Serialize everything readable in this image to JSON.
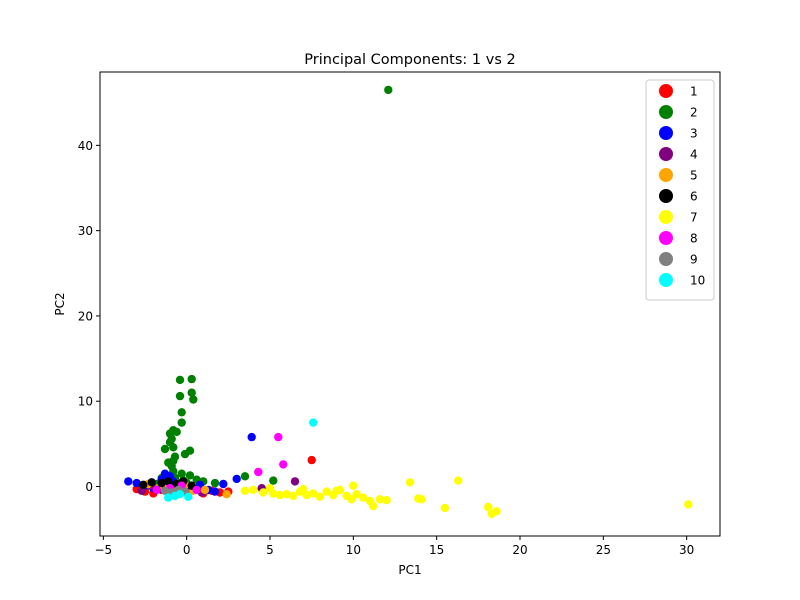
{
  "chart_data": {
    "type": "scatter",
    "title": "Principal Components: 1 vs 2",
    "xlabel": "PC1",
    "ylabel": "PC2",
    "xlim": [
      -5.2,
      32
    ],
    "ylim": [
      -5.8,
      48.6
    ],
    "xticks": [
      -5,
      0,
      5,
      10,
      15,
      20,
      25,
      30
    ],
    "yticks": [
      0,
      10,
      20,
      30,
      40
    ],
    "grid": false,
    "legend_position": "top-right",
    "series": [
      {
        "name": "1",
        "color": "#ff0000",
        "points": [
          [
            -3.0,
            -0.3
          ],
          [
            -2.5,
            -0.6
          ],
          [
            -2.0,
            -0.8
          ],
          [
            -1.5,
            -0.4
          ],
          [
            -1.0,
            -0.7
          ],
          [
            -0.5,
            -0.9
          ],
          [
            0.0,
            -0.6
          ],
          [
            0.5,
            -0.3
          ],
          [
            1.0,
            -0.8
          ],
          [
            1.5,
            -0.5
          ],
          [
            2.0,
            -0.7
          ],
          [
            2.5,
            -0.6
          ],
          [
            -0.2,
            0.2
          ],
          [
            0.8,
            -0.2
          ],
          [
            -1.2,
            0.3
          ],
          [
            7.5,
            3.1
          ]
        ]
      },
      {
        "name": "2",
        "color": "#008000",
        "points": [
          [
            12.1,
            46.5
          ],
          [
            -0.4,
            12.5
          ],
          [
            0.3,
            12.6
          ],
          [
            0.3,
            11.0
          ],
          [
            -0.4,
            10.6
          ],
          [
            0.4,
            10.2
          ],
          [
            -0.3,
            8.7
          ],
          [
            -0.3,
            7.5
          ],
          [
            -0.8,
            6.6
          ],
          [
            -0.6,
            6.4
          ],
          [
            -1.0,
            6.2
          ],
          [
            -0.9,
            5.6
          ],
          [
            -1.0,
            5.2
          ],
          [
            -1.3,
            4.4
          ],
          [
            -0.8,
            4.6
          ],
          [
            0.2,
            4.2
          ],
          [
            -0.1,
            3.8
          ],
          [
            -0.7,
            3.5
          ],
          [
            -0.8,
            3.0
          ],
          [
            -1.1,
            2.8
          ],
          [
            -0.9,
            2.4
          ],
          [
            -0.8,
            1.8
          ],
          [
            -1.0,
            1.2
          ],
          [
            -0.7,
            1.0
          ],
          [
            -0.3,
            1.5
          ],
          [
            0.2,
            1.3
          ],
          [
            0.6,
            0.8
          ],
          [
            -0.6,
            0.5
          ],
          [
            -0.2,
            0.7
          ],
          [
            0.0,
            0.4
          ],
          [
            3.5,
            1.2
          ],
          [
            5.2,
            0.7
          ],
          [
            1.7,
            0.4
          ],
          [
            1.0,
            0.6
          ],
          [
            -1.8,
            0.3
          ],
          [
            -1.5,
            1.0
          ]
        ]
      },
      {
        "name": "3",
        "color": "#0000ff",
        "points": [
          [
            -3.5,
            0.6
          ],
          [
            -3.0,
            0.4
          ],
          [
            -2.5,
            0.1
          ],
          [
            -2.0,
            -0.2
          ],
          [
            -1.5,
            0.8
          ],
          [
            -1.3,
            1.5
          ],
          [
            -1.0,
            1.2
          ],
          [
            -0.8,
            0.6
          ],
          [
            -0.2,
            0.3
          ],
          [
            0.2,
            -0.1
          ],
          [
            0.8,
            0.2
          ],
          [
            1.3,
            -0.4
          ],
          [
            1.7,
            -0.6
          ],
          [
            2.2,
            0.3
          ],
          [
            3.0,
            0.9
          ],
          [
            3.9,
            5.8
          ],
          [
            -1.2,
            0.4
          ]
        ]
      },
      {
        "name": "4",
        "color": "#800080",
        "points": [
          [
            -2.7,
            -0.5
          ],
          [
            -2.2,
            0.1
          ],
          [
            -1.6,
            -0.3
          ],
          [
            -0.9,
            -0.6
          ],
          [
            0.1,
            -0.2
          ],
          [
            0.9,
            -0.7
          ],
          [
            4.5,
            -0.2
          ],
          [
            6.5,
            0.6
          ]
        ]
      },
      {
        "name": "5",
        "color": "#ffa500",
        "points": [
          [
            -2.3,
            0.3
          ],
          [
            -1.7,
            -0.2
          ],
          [
            -1.2,
            0.1
          ],
          [
            -0.6,
            -0.3
          ],
          [
            -0.1,
            0.2
          ],
          [
            0.4,
            -0.5
          ],
          [
            1.1,
            -0.4
          ],
          [
            2.4,
            -0.9
          ]
        ]
      },
      {
        "name": "6",
        "color": "#000000",
        "points": [
          [
            -2.6,
            0.2
          ],
          [
            -2.1,
            0.5
          ],
          [
            -1.5,
            0.4
          ],
          [
            -1.1,
            0.6
          ],
          [
            -0.6,
            0.3
          ],
          [
            -0.2,
            0.6
          ],
          [
            0.3,
            0.1
          ],
          [
            -1.8,
            -0.4
          ]
        ]
      },
      {
        "name": "7",
        "color": "#ffff00",
        "points": [
          [
            3.5,
            -0.5
          ],
          [
            4.0,
            -0.4
          ],
          [
            4.6,
            -0.7
          ],
          [
            5.2,
            -0.8
          ],
          [
            5.6,
            -1.0
          ],
          [
            6.0,
            -0.9
          ],
          [
            6.4,
            -1.1
          ],
          [
            6.8,
            -0.6
          ],
          [
            7.2,
            -1.0
          ],
          [
            7.6,
            -0.8
          ],
          [
            8.0,
            -1.2
          ],
          [
            8.4,
            -0.6
          ],
          [
            8.8,
            -1.0
          ],
          [
            9.2,
            -0.4
          ],
          [
            9.6,
            -1.1
          ],
          [
            9.9,
            -1.5
          ],
          [
            10.2,
            -0.9
          ],
          [
            10.6,
            -1.3
          ],
          [
            11.0,
            -1.7
          ],
          [
            11.2,
            -2.3
          ],
          [
            11.6,
            -1.5
          ],
          [
            12.0,
            -1.6
          ],
          [
            13.4,
            0.5
          ],
          [
            13.9,
            -1.4
          ],
          [
            14.1,
            -1.5
          ],
          [
            15.5,
            -2.5
          ],
          [
            16.3,
            0.7
          ],
          [
            18.1,
            -2.4
          ],
          [
            18.3,
            -3.2
          ],
          [
            18.6,
            -2.9
          ],
          [
            30.1,
            -2.1
          ],
          [
            10.0,
            0.1
          ],
          [
            7.0,
            -0.3
          ],
          [
            5.0,
            -0.2
          ],
          [
            9.0,
            -0.5
          ]
        ]
      },
      {
        "name": "8",
        "color": "#ff00ff",
        "points": [
          [
            -1.8,
            -0.4
          ],
          [
            -1.0,
            -0.2
          ],
          [
            -0.3,
            0.1
          ],
          [
            0.6,
            -0.4
          ],
          [
            4.3,
            1.7
          ],
          [
            5.5,
            5.8
          ],
          [
            5.8,
            2.6
          ]
        ]
      },
      {
        "name": "9",
        "color": "#808080",
        "points": [
          [
            -1.3,
            -0.5
          ],
          [
            -0.9,
            -0.7
          ],
          [
            -0.5,
            -0.4
          ],
          [
            -0.1,
            -0.6
          ],
          [
            -0.7,
            -1.0
          ]
        ]
      },
      {
        "name": "10",
        "color": "#00ffff",
        "points": [
          [
            -1.1,
            -1.3
          ],
          [
            -0.7,
            -1.1
          ],
          [
            -0.4,
            -0.9
          ],
          [
            0.1,
            -1.2
          ],
          [
            7.6,
            7.5
          ]
        ]
      }
    ]
  }
}
